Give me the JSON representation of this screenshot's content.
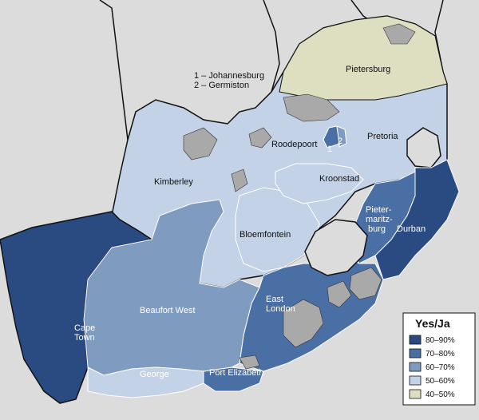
{
  "notes": {
    "line1": "1 – Johannesburg",
    "line2": "2 – Germiston"
  },
  "regions": {
    "pietersburg": "Pietersburg",
    "pretoria": "Pretoria",
    "roodepoort": "Roodepoort",
    "kimberley": "Kimberley",
    "kroonstad": "Kroonstad",
    "bloemfontein": "Bloemfontein",
    "pietermaritzburg_1": "Pieter-",
    "pietermaritzburg_2": "maritz-",
    "pietermaritzburg_3": "burg",
    "durban": "Durban",
    "east_london_1": "East",
    "east_london_2": "London",
    "beaufort_west": "Beaufort West",
    "cape_town_1": "Cape",
    "cape_town_2": "Town",
    "george": "George",
    "port_elizabeth": "Port Elizabeth",
    "num1": "1",
    "num2": "2"
  },
  "legend": {
    "title": "Yes/Ja",
    "items": [
      {
        "label": "80–90%",
        "color": "#2a4a82"
      },
      {
        "label": "70–80%",
        "color": "#4a6fa5"
      },
      {
        "label": "60–70%",
        "color": "#7f9bc0"
      },
      {
        "label": "50–60%",
        "color": "#c3d2e6"
      },
      {
        "label": "40–50%",
        "color": "#dedec0"
      }
    ]
  },
  "colors": {
    "sea": "#dcdcdc",
    "border": "#111111",
    "inner_border": "#ffffff",
    "noncounted": "#a9a9a9"
  }
}
